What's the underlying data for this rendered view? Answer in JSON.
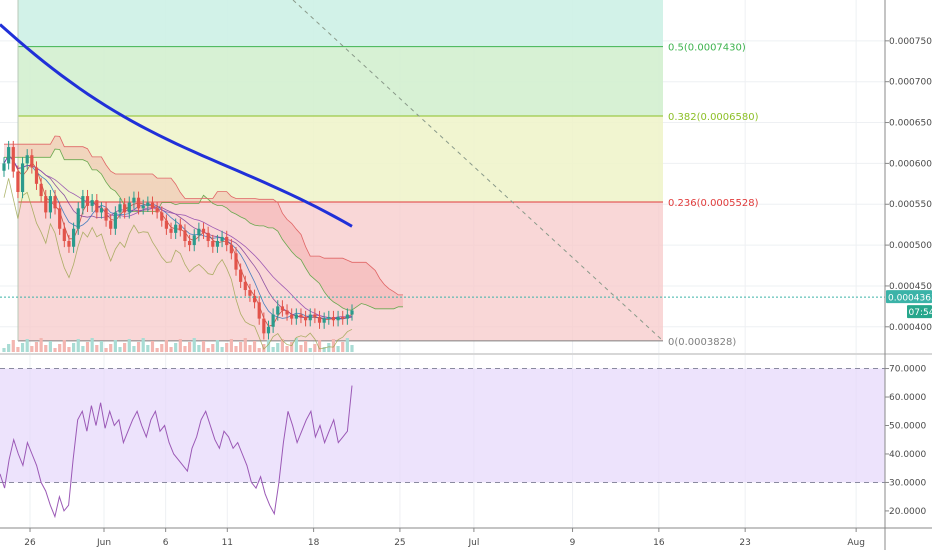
{
  "colors": {
    "background": "#ffffff",
    "grid": "#eef0f3",
    "axis_line": "#888888",
    "up_candle": "#2b9b8c",
    "down_candle": "#e2534a",
    "ma_long": "#2030d8",
    "rsi_line": "#9b59b6",
    "rsi_band": "#e6d7fb",
    "cloud_red": "#f29a9a",
    "cloud_green": "#b9d9a8",
    "price_tag": "#3bb3a8",
    "timer_tag": "#27a78c"
  },
  "chart_data": {
    "type": "candlestick",
    "main_price_axis": {
      "labels": [
        "0.0007500",
        "0.0007000",
        "0.0006500",
        "0.0006000",
        "0.0005500",
        "0.0005000",
        "0.0004500",
        "0.0004000"
      ],
      "values": [
        0.00075,
        0.0007,
        0.00065,
        0.0006,
        0.00055,
        0.0005,
        0.00045,
        0.0004
      ],
      "ylim": [
        0.0003716,
        0.0008
      ]
    },
    "current_price": {
      "value": 0.0004363,
      "label": "0.0004363"
    },
    "timer": "07:54",
    "fib_levels": [
      {
        "ratio": 0.5,
        "price": 0.000743,
        "label": "0.5(0.0007430)",
        "color": "#3fb34f"
      },
      {
        "ratio": 0.382,
        "price": 0.000658,
        "label": "0.382(0.0006580)",
        "color": "#8cbf26"
      },
      {
        "ratio": 0.236,
        "price": 0.0005528,
        "label": "0.236(0.0005528)",
        "color": "#e03b3b"
      },
      {
        "ratio": 0,
        "price": 0.0003828,
        "label": "0(0.0003828)",
        "color": "#808080"
      }
    ],
    "x_axis": {
      "labels": [
        "26",
        "Jun",
        "6",
        "11",
        "18",
        "25",
        "Jul",
        "9",
        "16",
        "23",
        "Aug"
      ],
      "days": [
        -6,
        0,
        5,
        10,
        17,
        24,
        30,
        38,
        45,
        52,
        61
      ]
    },
    "candles_close": [
      0.0006,
      0.00062,
      0.00059,
      0.000565,
      0.0006,
      0.00061,
      0.000595,
      0.000575,
      0.00056,
      0.00054,
      0.00056,
      0.000545,
      0.00052,
      0.000505,
      0.000498,
      0.00052,
      0.000545,
      0.00056,
      0.000548,
      0.000555,
      0.00054,
      0.000545,
      0.00053,
      0.00052,
      0.00054,
      0.00055,
      0.00054,
      0.000552,
      0.000558,
      0.000545,
      0.000548,
      0.000552,
      0.000545,
      0.00054,
      0.00053,
      0.00052,
      0.000515,
      0.000525,
      0.000518,
      0.000505,
      0.0005,
      0.000512,
      0.00052,
      0.000515,
      0.000505,
      0.000498,
      0.000505,
      0.00051,
      0.0005,
      0.00049,
      0.00047,
      0.000455,
      0.000445,
      0.000438,
      0.00043,
      0.00041,
      0.000392,
      0.0004,
      0.000415,
      0.000425,
      0.00042,
      0.000415,
      0.00041,
      0.000415,
      0.000412,
      0.000408,
      0.000415,
      0.000412,
      0.000405,
      0.00041,
      0.000412,
      0.000408,
      0.000412,
      0.00041,
      0.000415,
      0.00042
    ],
    "ma_long": {
      "start_price": 0.00077,
      "end_price": 0.000523
    },
    "rsi": {
      "axis_labels": [
        "70.0000",
        "60.0000",
        "50.0000",
        "40.0000",
        "30.0000",
        "20.0000"
      ],
      "axis_values": [
        70,
        60,
        50,
        40,
        30,
        20
      ],
      "band": [
        30,
        70
      ],
      "ylim": [
        14,
        73
      ],
      "values": [
        33,
        28,
        38,
        45,
        40,
        36,
        44,
        40,
        36,
        30,
        27,
        22,
        18,
        25,
        20,
        22,
        38,
        52,
        55,
        48,
        57,
        50,
        58,
        49,
        55,
        50,
        52,
        44,
        48,
        52,
        55,
        50,
        46,
        52,
        55,
        48,
        50,
        44,
        40,
        38,
        36,
        34,
        42,
        46,
        52,
        55,
        50,
        45,
        42,
        48,
        46,
        42,
        44,
        40,
        36,
        30,
        28,
        32,
        26,
        22,
        19,
        30,
        44,
        55,
        50,
        44,
        48,
        52,
        55,
        46,
        50,
        44,
        48,
        52,
        44,
        46,
        48,
        64
      ]
    }
  }
}
